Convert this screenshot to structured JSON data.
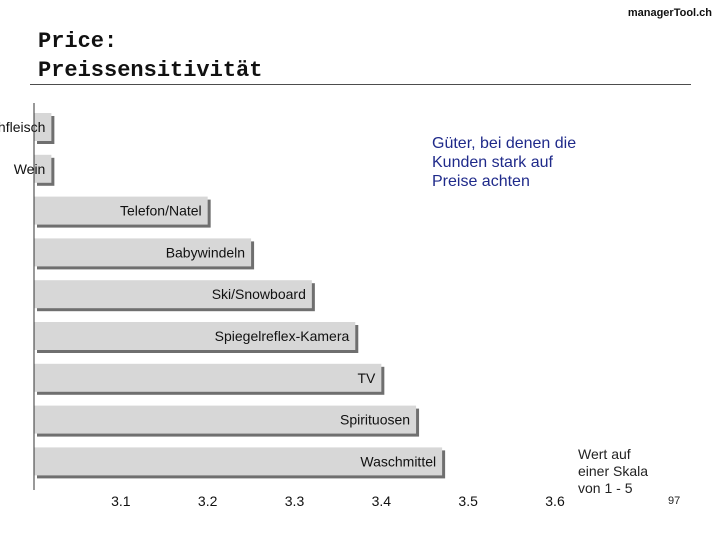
{
  "header": {
    "brand": "managerTool.ch",
    "title_line1": "Price:",
    "title_line2": "Preissensitivität"
  },
  "annotation": {
    "line1": "Güter, bei denen die",
    "line2": "Kunden stark auf",
    "line3": "Preise achten"
  },
  "unit_note": {
    "line1": "Wert auf",
    "line2": "einer Skala",
    "line3": "von 1 - 5"
  },
  "page_number": "97",
  "colors": {
    "bar_fill": "#d7d7d7",
    "bar_shadow": "#6f6f6f",
    "annotation_text": "#1f2a8a"
  },
  "chart_data": {
    "type": "bar",
    "orientation": "horizontal",
    "categories": [
      "Frischfleisch",
      "Wein",
      "Telefon/Natel",
      "Babywindeln",
      "Ski/Snowboard",
      "Spiegelreflex-Kamera",
      "TV",
      "Spirituosen",
      "Waschmittel"
    ],
    "values": [
      3.02,
      3.02,
      3.2,
      3.25,
      3.32,
      3.37,
      3.4,
      3.44,
      3.47
    ],
    "xlim": [
      3.0,
      3.6
    ],
    "xticks": [
      "3.1",
      "3.2",
      "3.3",
      "3.4",
      "3.5",
      "3.6"
    ],
    "xtick_values": [
      3.1,
      3.2,
      3.3,
      3.4,
      3.5,
      3.6
    ],
    "grid": false
  }
}
